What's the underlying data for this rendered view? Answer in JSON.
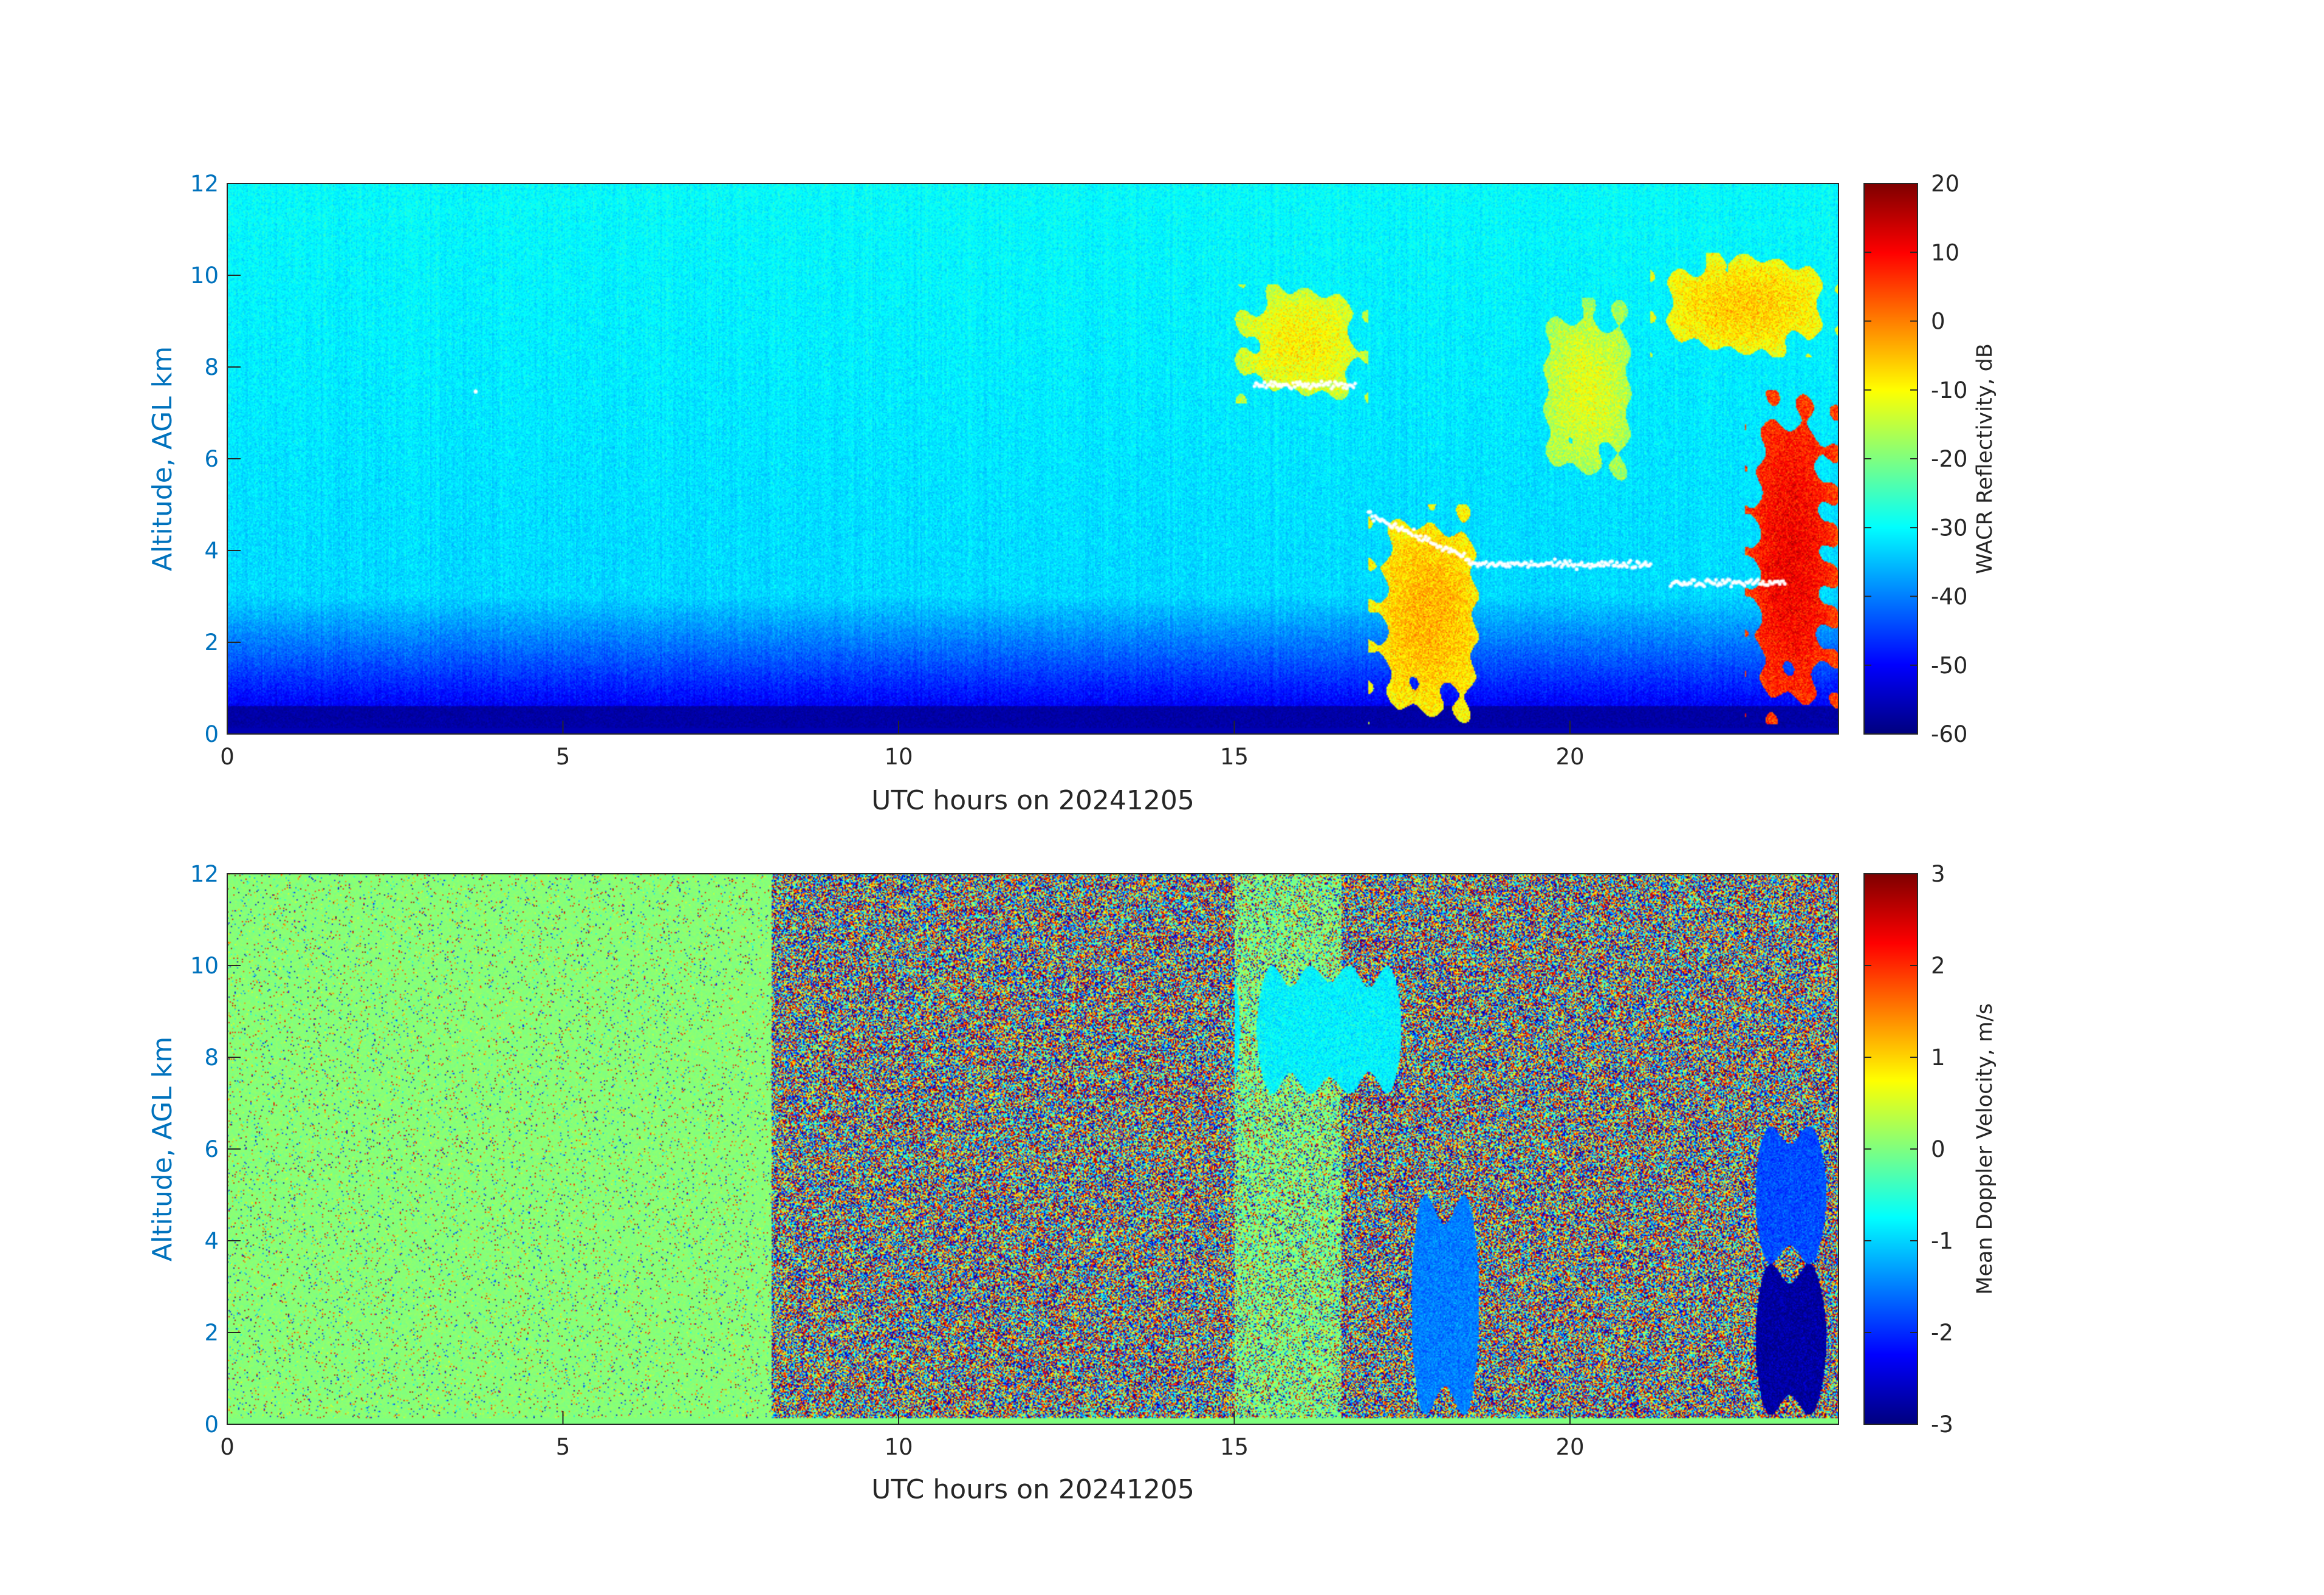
{
  "chart_data": [
    {
      "type": "heatmap",
      "name": "reflectivity",
      "xlabel": "UTC hours on 20241205",
      "ylabel": "Altitude, AGL km",
      "xlim": [
        0,
        24
      ],
      "ylim": [
        0,
        12
      ],
      "xticks": [
        0,
        5,
        10,
        15,
        20
      ],
      "yticks": [
        0,
        2,
        4,
        6,
        8,
        10,
        12
      ],
      "colorbar": {
        "label": "WACR Reflectivity, dB",
        "range": [
          -60,
          20
        ],
        "ticks": [
          -60,
          -50,
          -40,
          -30,
          -20,
          -10,
          0,
          10,
          20
        ],
        "colormap": "jet"
      },
      "features": {
        "background_clear_air": "-35 to -30 dB above 3 km, decreasing to -55 dB near ground",
        "cloud_layers": [
          {
            "x": [
              15.0,
              17.0
            ],
            "y": [
              7.2,
              9.8
            ],
            "value": -15
          },
          {
            "x": [
              17.0,
              18.8
            ],
            "y": [
              0.2,
              5.0
            ],
            "value": -10
          },
          {
            "x": [
              19.5,
              21.0
            ],
            "y": [
              5.5,
              9.5
            ],
            "value": -18
          },
          {
            "x": [
              21.2,
              24.0
            ],
            "y": [
              8.2,
              10.5
            ],
            "value": -12
          },
          {
            "x": [
              22.6,
              24.0
            ],
            "y": [
              0.2,
              7.5
            ],
            "value": 5
          }
        ],
        "ceilometer_base_points": [
          {
            "x": [
              15.3,
              16.8
            ],
            "y": 7.6
          },
          {
            "x": [
              17.0,
              18.5
            ],
            "y": [
              4.8,
              3.8
            ]
          },
          {
            "x": [
              18.5,
              21.2
            ],
            "y": 3.7
          },
          {
            "x": [
              21.5,
              23.2
            ],
            "y": 3.3
          },
          {
            "x": [
              3.7,
              3.7
            ],
            "y": 7.5
          }
        ]
      }
    },
    {
      "type": "heatmap",
      "name": "doppler_velocity",
      "xlabel": "UTC hours on 20241205",
      "ylabel": "Altitude, AGL km",
      "xlim": [
        0,
        24
      ],
      "ylim": [
        0,
        12
      ],
      "xticks": [
        0,
        5,
        10,
        15,
        20
      ],
      "yticks": [
        0,
        2,
        4,
        6,
        8,
        10,
        12
      ],
      "colorbar": {
        "label": "Mean Doppler Velocity, m/s",
        "range": [
          -3,
          3
        ],
        "ticks": [
          -3,
          -2,
          -1,
          0,
          1,
          2,
          3
        ],
        "colormap": "jet"
      },
      "features": {
        "noise_regions": [
          {
            "x": [
              0,
              8.1
            ],
            "type": "low-noise",
            "value": 0
          },
          {
            "x": [
              8.1,
              16.6
            ],
            "type": "random-noise"
          },
          {
            "x": [
              16.6,
              24
            ],
            "type": "random-noise"
          }
        ],
        "cloud_regions": [
          {
            "x": [
              15.0,
              17.8
            ],
            "y": [
              7.2,
              10.0
            ],
            "value": -0.8
          },
          {
            "x": [
              17.5,
              18.8
            ],
            "y": [
              0.2,
              5.0
            ],
            "value": -1.5
          },
          {
            "x": [
              22.6,
              24.0
            ],
            "y": [
              0.2,
              3.5
            ],
            "value": -2.8
          },
          {
            "x": [
              22.6,
              24.0
            ],
            "y": [
              3.5,
              6.5
            ],
            "value": -1.8
          }
        ]
      }
    }
  ]
}
